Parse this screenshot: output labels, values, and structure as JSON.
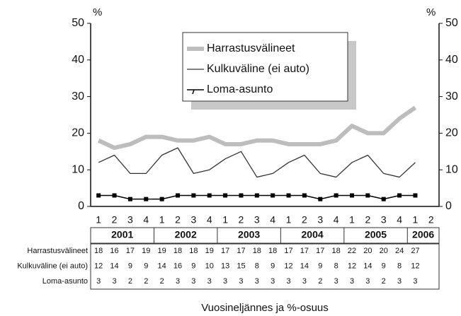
{
  "chart_data": {
    "type": "line",
    "xlabel": "Vuosineljännes ja %-osuus",
    "yunit": "%",
    "y2unit": "%",
    "categories": [
      "1",
      "2",
      "3",
      "4",
      "1",
      "2",
      "3",
      "4",
      "1",
      "2",
      "3",
      "4",
      "1",
      "2",
      "3",
      "4",
      "1",
      "2",
      "3",
      "4",
      "1",
      "2"
    ],
    "years": [
      "2001",
      "2002",
      "2003",
      "2004",
      "2005",
      "2006"
    ],
    "series": [
      {
        "name": "Harrastusvälineet",
        "color": "#bdbdbd",
        "values": [
          18,
          16,
          17,
          19,
          19,
          18,
          18,
          19,
          17,
          17,
          18,
          18,
          17,
          17,
          17,
          18,
          22,
          20,
          20,
          24,
          27,
          null
        ]
      },
      {
        "name": "Kulkuväline (ei auto)",
        "color": "#333333",
        "values": [
          12,
          14,
          9,
          9,
          14,
          16,
          9,
          10,
          13,
          15,
          8,
          9,
          12,
          14,
          9,
          8,
          12,
          14,
          9,
          8,
          12,
          null
        ]
      },
      {
        "name": "Loma-asunto",
        "color": "#000000",
        "values": [
          3,
          3,
          2,
          2,
          2,
          3,
          3,
          3,
          3,
          3,
          3,
          3,
          3,
          3,
          2,
          3,
          3,
          3,
          2,
          3,
          3,
          null
        ]
      }
    ],
    "ylim": [
      0,
      50
    ],
    "yticks": [
      0,
      10,
      20,
      30,
      40,
      50
    ],
    "y2lim": [
      0,
      50
    ],
    "y2ticks": [
      0,
      10,
      20,
      30,
      40,
      50
    ]
  }
}
